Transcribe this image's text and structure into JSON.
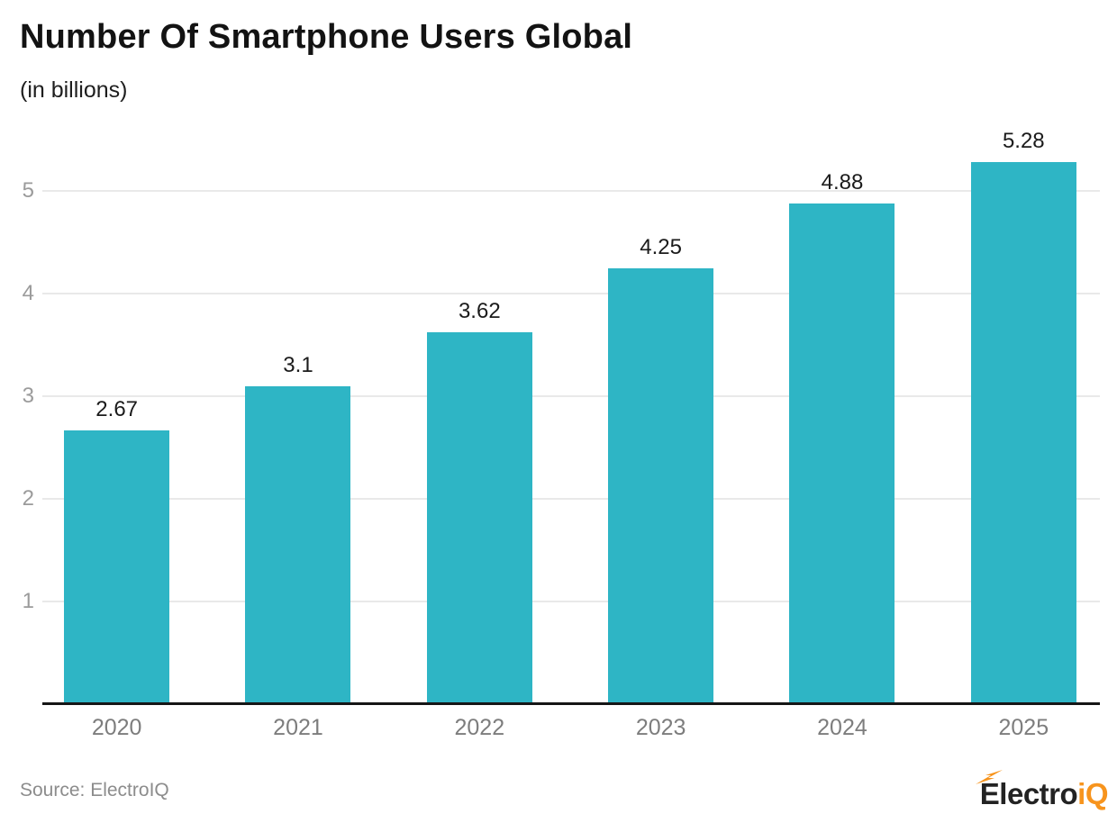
{
  "header": {
    "title": "Number Of Smartphone Users Global",
    "subtitle": "(in billions)"
  },
  "chart_data": {
    "type": "bar",
    "title": "Number Of Smartphone Users Global",
    "subtitle": "(in billions)",
    "categories": [
      "2020",
      "2021",
      "2022",
      "2023",
      "2024",
      "2025"
    ],
    "values": [
      2.67,
      3.1,
      3.62,
      4.25,
      4.88,
      5.28
    ],
    "value_labels": [
      "2.67",
      "3.1",
      "3.62",
      "4.25",
      "4.88",
      "5.28"
    ],
    "xlabel": "",
    "ylabel": "",
    "yticks": [
      1,
      2,
      3,
      4,
      5
    ],
    "ylim": [
      0,
      5.6
    ],
    "grid": "horizontal-only",
    "legend": "none",
    "bar_color": "#2EB5C5"
  },
  "colors": {
    "bar": "#2EB5C5",
    "axis_line": "#161616",
    "gridline": "#e9e9e9",
    "y_tick_label": "#9b9b9b",
    "x_tick_label": "#7d7d7d",
    "value_label": "#1b1b1b",
    "logo_dark": "#232323",
    "logo_orange": "#F7941D"
  },
  "footer": {
    "source": "Source: ElectroIQ",
    "logo_text_dark": "Electro",
    "logo_text_orange": "iQ"
  }
}
